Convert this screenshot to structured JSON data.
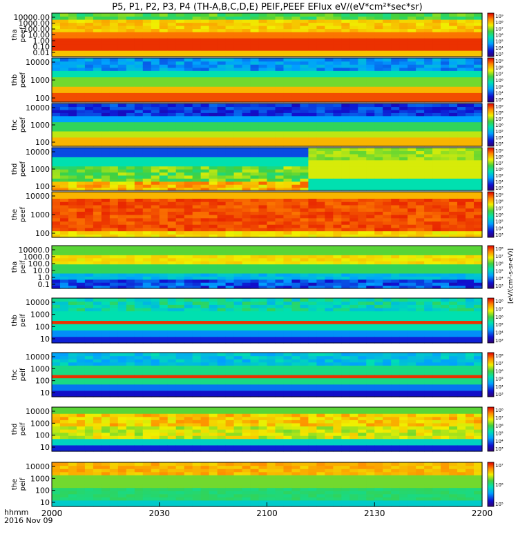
{
  "chart_data": {
    "type": "heatmap",
    "title": "P5, P1, P2, P3, P4 (TH-A,B,C,D,E) PEIF,PEEF EFlux eV/(eV*cm²*sec*sr)",
    "x_ticks": [
      "2000",
      "2030",
      "2100",
      "2130",
      "2200"
    ],
    "x_label_line1": "hhmm",
    "x_label_line2": "2016 Nov 09",
    "colorbar_label": "[eV/(cm²-s-sr-eV)]",
    "panels": [
      {
        "name": "tha peef",
        "probe": "tha",
        "quantity": "peef",
        "y_ticks": [
          "10000.00",
          "1000.00",
          "100.00",
          "10.00",
          "1.00",
          "0.10",
          "0.01"
        ],
        "c_ticks": [
          "10⁹",
          "10⁸",
          "10⁷",
          "10⁶",
          "10⁵",
          "10⁴",
          "10³"
        ],
        "c_range": [
          "10³",
          "10⁹"
        ]
      },
      {
        "name": "thb peef",
        "probe": "thb",
        "quantity": "peef",
        "y_ticks": [
          "10000",
          "1000",
          "100"
        ],
        "c_ticks": [
          "10⁹",
          "10⁸",
          "10⁷",
          "10⁶",
          "10⁵",
          "10⁴",
          "10³"
        ],
        "c_range": [
          "10³",
          "10⁹"
        ]
      },
      {
        "name": "thc peef",
        "probe": "thc",
        "quantity": "peef",
        "y_ticks": [
          "10000",
          "1000",
          "100"
        ],
        "c_ticks": [
          "10⁹",
          "10⁸",
          "10⁷",
          "10⁶",
          "10⁵",
          "10⁴",
          "10³"
        ],
        "c_range": [
          "10³",
          "10⁹"
        ]
      },
      {
        "name": "thd peef",
        "probe": "thd",
        "quantity": "peef",
        "y_ticks": [
          "10000",
          "1000",
          "100"
        ],
        "c_ticks": [
          "10⁹",
          "10⁸",
          "10⁷",
          "10⁶",
          "10⁵",
          "10⁴",
          "10³"
        ],
        "c_range": [
          "10³",
          "10⁹"
        ]
      },
      {
        "name": "the peef",
        "probe": "the",
        "quantity": "peef",
        "y_ticks": [
          "10000",
          "1000",
          "100"
        ],
        "c_ticks": [
          "10⁹",
          "10⁸",
          "10⁷",
          "10⁶",
          "10⁵",
          "10⁴",
          "10³"
        ],
        "c_range": [
          "10³",
          "10⁹"
        ]
      },
      {
        "name": "tha peif",
        "probe": "tha",
        "quantity": "peif",
        "y_ticks": [
          "10000.0",
          "1000.0",
          "100.0",
          "10.0",
          "1.0",
          "0.1"
        ],
        "c_ticks": [
          "10⁸",
          "10⁷",
          "10⁶",
          "10⁵",
          "10⁴",
          "10³"
        ],
        "c_range": [
          "10³",
          "10⁸"
        ]
      },
      {
        "name": "thb peif",
        "probe": "thb",
        "quantity": "peif",
        "y_ticks": [
          "10000",
          "1000",
          "100",
          "10"
        ],
        "c_ticks": [
          "10⁸",
          "10⁷",
          "10⁶",
          "10⁵",
          "10⁴",
          "10³"
        ],
        "c_range": [
          "10³",
          "10⁸"
        ]
      },
      {
        "name": "thc peif",
        "probe": "thc",
        "quantity": "peif",
        "y_ticks": [
          "10000",
          "1000",
          "100",
          "10"
        ],
        "c_ticks": [
          "10⁸",
          "10⁷",
          "10⁶",
          "10⁵",
          "10⁴",
          "10³"
        ],
        "c_range": [
          "10³",
          "10⁸"
        ]
      },
      {
        "name": "thd peif",
        "probe": "thd",
        "quantity": "peif",
        "y_ticks": [
          "10000",
          "1000",
          "100",
          "10"
        ],
        "c_ticks": [
          "10⁸",
          "10⁷",
          "10⁶",
          "10⁵",
          "10⁴",
          "10³"
        ],
        "c_range": [
          "10³",
          "10⁸"
        ]
      },
      {
        "name": "the peif",
        "probe": "the",
        "quantity": "peif",
        "y_ticks": [
          "10000",
          "1000",
          "100",
          "10"
        ],
        "c_ticks": [
          "10⁷",
          "10⁶",
          "10⁵"
        ],
        "c_range": [
          "10⁵",
          "10⁷"
        ]
      }
    ],
    "grid": false,
    "colormap": "rainbow (purple-blue-cyan-green-yellow-red)"
  }
}
